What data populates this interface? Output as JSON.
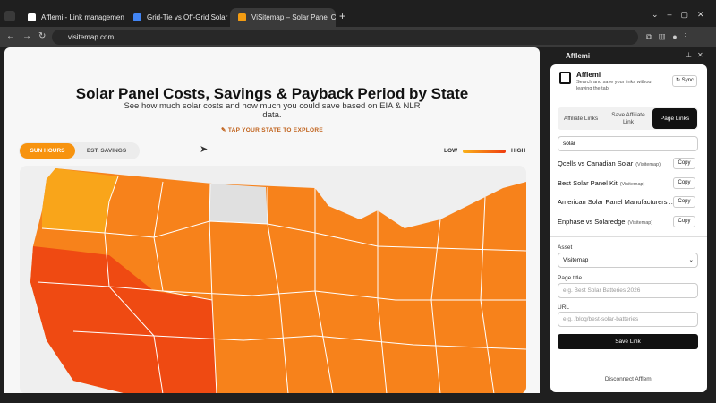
{
  "browser": {
    "tabs": [
      "Afflemi - Link management t",
      "Grid-Tie vs Off-Grid Solar Sy",
      "ViSitemap – Solar Panel Co"
    ],
    "url": "visitemap.com"
  },
  "page": {
    "title": "Solar Panel Costs, Savings & Payback Period by State",
    "subtitle": "See how much solar costs and how much you could save based on EIA & NLR data.",
    "cta": "TAP YOUR STATE TO EXPLORE",
    "toggle": [
      "SUN HOURS",
      "EST. SAVINGS"
    ],
    "legend": {
      "low": "LOW",
      "high": "HIGH"
    }
  },
  "side_panel": {
    "header": "Afflemi",
    "app_name": "Afflemi",
    "description": "Search and save your links without leaving the tab",
    "sync": "Sync",
    "tabs": [
      "Affiliate Links",
      "Save Affiliate Link",
      "Page Links"
    ],
    "search": "solar",
    "links": [
      {
        "title": "Qcells vs Canadian Solar",
        "source": "(Visitemap)",
        "action": "Copy"
      },
      {
        "title": "Best Solar Panel Kit",
        "source": "(Visitemap)",
        "action": "Copy"
      },
      {
        "title": "American Solar Panel Manufacturers ...",
        "source": "",
        "action": "Copy"
      },
      {
        "title": "Enphase vs Solaredge",
        "source": "(Visitemap)",
        "action": "Copy"
      }
    ],
    "asset_label": "Asset",
    "asset_value": "Visitemap",
    "page_title_label": "Page title",
    "page_title_placeholder": "e.g. Best Solar Batteries 2026",
    "url_label": "URL",
    "url_placeholder": "e.g. /blog/best-solar-batteries",
    "save": "Save Link",
    "disconnect": "Disconnect Afflemi"
  }
}
